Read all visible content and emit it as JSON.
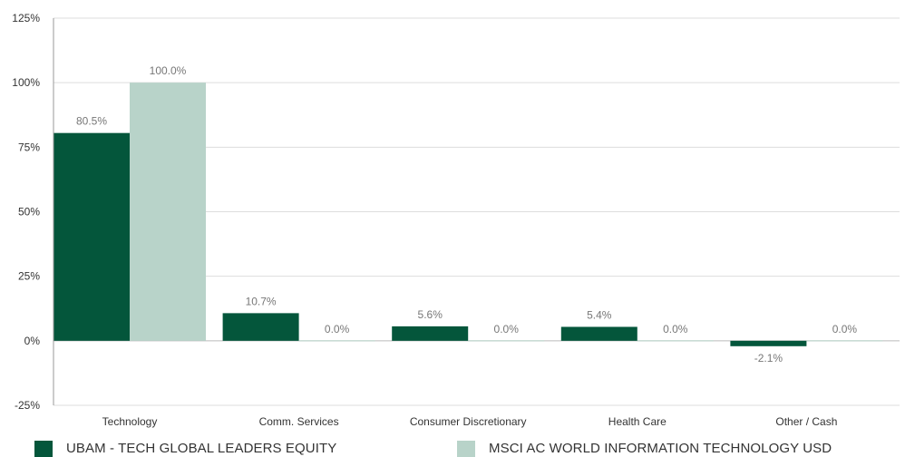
{
  "chart_data": {
    "type": "bar",
    "categories": [
      "Technology",
      "Comm. Services",
      "Consumer Discretionary",
      "Health Care",
      "Other / Cash"
    ],
    "series": [
      {
        "name": "UBAM - TECH GLOBAL LEADERS EQUITY",
        "color": "#04563b",
        "values": [
          80.5,
          10.7,
          5.6,
          5.4,
          -2.1
        ],
        "labels": [
          "80.5%",
          "10.7%",
          "5.6%",
          "5.4%",
          "-2.1%"
        ]
      },
      {
        "name": "MSCI AC WORLD INFORMATION TECHNOLOGY USD",
        "color": "#b8d3c9",
        "values": [
          100.0,
          0.0,
          0.0,
          0.0,
          0.0
        ],
        "labels": [
          "100.0%",
          "0.0%",
          "0.0%",
          "0.0%",
          "0.0%"
        ]
      }
    ],
    "yticks": [
      125,
      100,
      75,
      50,
      25,
      0,
      -25
    ],
    "ytick_labels": [
      "125%",
      "100%",
      "75%",
      "50%",
      "25%",
      "0%",
      "-25%"
    ],
    "ylim": [
      -25,
      125
    ],
    "grid": true,
    "legend_position": "bottom"
  }
}
